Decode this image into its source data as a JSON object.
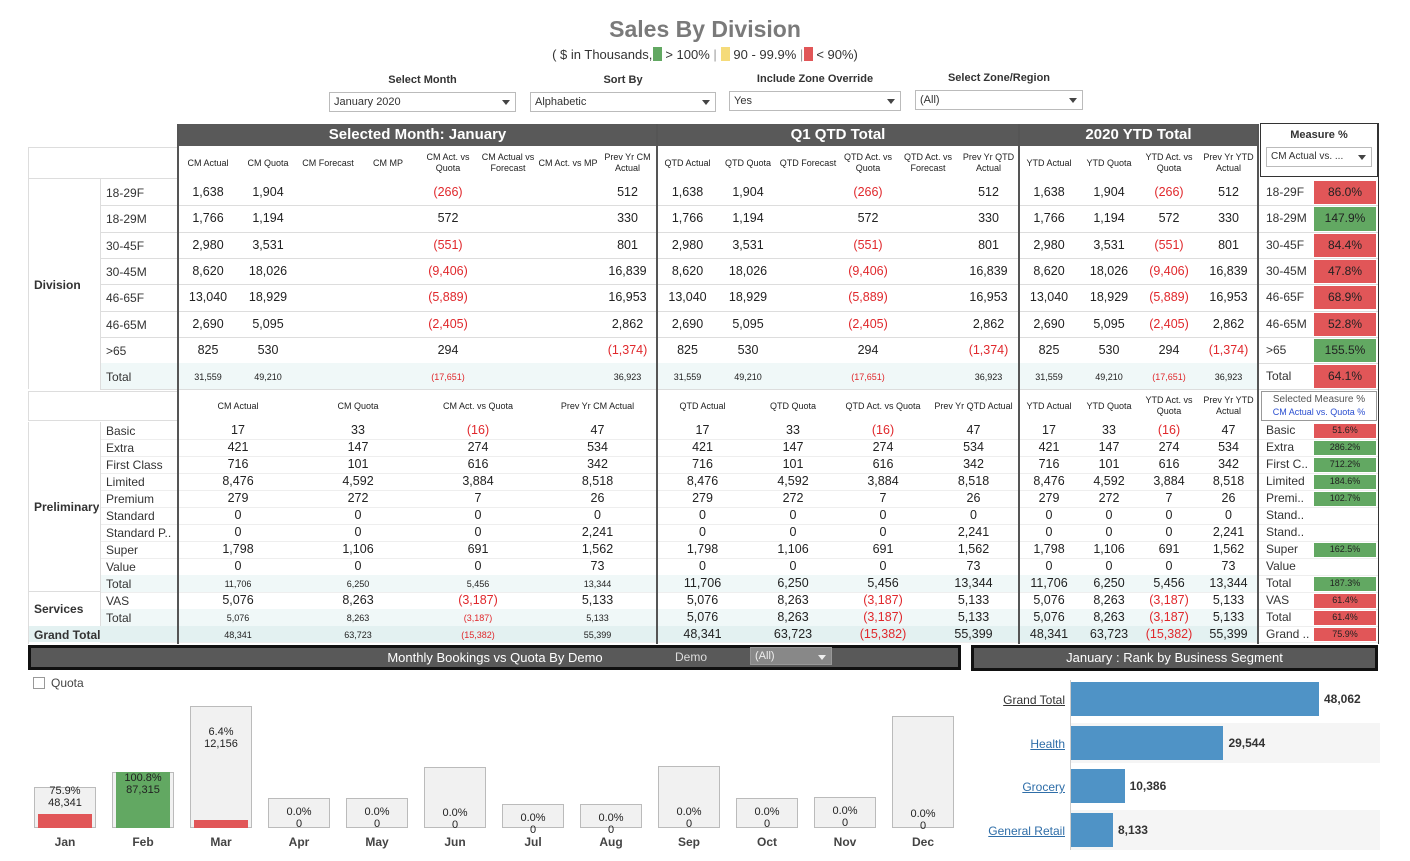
{
  "title": "Sales By Division",
  "subtitle": {
    "prefix": "( $ in Thousands,",
    "green": "> 100%",
    "yellow": "90 - 99.9%",
    "red": "< 90%)"
  },
  "colors": {
    "green": "#62a862",
    "yellow": "#f5db7a",
    "red": "#e15658",
    "header": "#595959",
    "bar_blue": "#4f93c6"
  },
  "filters": [
    {
      "label": "Select Month",
      "value": "January 2020"
    },
    {
      "label": "Sort By",
      "value": "Alphabetic"
    },
    {
      "label": "Include Zone Override",
      "value": "Yes"
    },
    {
      "label": "Select Zone/Region",
      "value": "(All)"
    }
  ],
  "sections": {
    "month": "Selected Month: January",
    "qtd": "Q1 QTD Total",
    "ytd": "2020 YTD Total"
  },
  "measure": {
    "title": "Measure %",
    "value": "CM Actual vs. ...",
    "selected_title": "Selected Measure %",
    "selected_value": "CM Actual vs. Quota %"
  },
  "top_cols": {
    "month": [
      "CM Actual",
      "CM Quota",
      "CM Forecast",
      "CM MP",
      "CM Act. vs Quota",
      "CM Actual vs Forecast",
      "CM Act. vs MP",
      "Prev Yr CM Actual"
    ],
    "qtd": [
      "QTD Actual",
      "QTD Quota",
      "QTD Forecast",
      "QTD Act. vs Quota",
      "QTD Act. vs Forecast",
      "Prev Yr QTD Actual"
    ],
    "ytd": [
      "YTD Actual",
      "YTD Quota",
      "YTD Act. vs Quota",
      "Prev Yr YTD Actual"
    ]
  },
  "division": {
    "label": "Division",
    "rows": [
      {
        "name": "18-29F",
        "m": [
          "1,638",
          "1,904",
          "",
          "",
          "(266)",
          "",
          "",
          "512"
        ],
        "q": [
          "1,638",
          "1,904",
          "",
          "(266)",
          "",
          "512"
        ],
        "y": [
          "1,638",
          "1,904",
          "(266)",
          "512"
        ],
        "pct": "86.0%",
        "c": "red"
      },
      {
        "name": "18-29M",
        "m": [
          "1,766",
          "1,194",
          "",
          "",
          "572",
          "",
          "",
          "330"
        ],
        "q": [
          "1,766",
          "1,194",
          "",
          "572",
          "",
          "330"
        ],
        "y": [
          "1,766",
          "1,194",
          "572",
          "330"
        ],
        "pct": "147.9%",
        "c": "green"
      },
      {
        "name": "30-45F",
        "m": [
          "2,980",
          "3,531",
          "",
          "",
          "(551)",
          "",
          "",
          "801"
        ],
        "q": [
          "2,980",
          "3,531",
          "",
          "(551)",
          "",
          "801"
        ],
        "y": [
          "2,980",
          "3,531",
          "(551)",
          "801"
        ],
        "pct": "84.4%",
        "c": "red"
      },
      {
        "name": "30-45M",
        "m": [
          "8,620",
          "18,026",
          "",
          "",
          "(9,406)",
          "",
          "",
          "16,839"
        ],
        "q": [
          "8,620",
          "18,026",
          "",
          "(9,406)",
          "",
          "16,839"
        ],
        "y": [
          "8,620",
          "18,026",
          "(9,406)",
          "16,839"
        ],
        "pct": "47.8%",
        "c": "red"
      },
      {
        "name": "46-65F",
        "m": [
          "13,040",
          "18,929",
          "",
          "",
          "(5,889)",
          "",
          "",
          "16,953"
        ],
        "q": [
          "13,040",
          "18,929",
          "",
          "(5,889)",
          "",
          "16,953"
        ],
        "y": [
          "13,040",
          "18,929",
          "(5,889)",
          "16,953"
        ],
        "pct": "68.9%",
        "c": "red"
      },
      {
        "name": "46-65M",
        "m": [
          "2,690",
          "5,095",
          "",
          "",
          "(2,405)",
          "",
          "",
          "2,862"
        ],
        "q": [
          "2,690",
          "5,095",
          "",
          "(2,405)",
          "",
          "2,862"
        ],
        "y": [
          "2,690",
          "5,095",
          "(2,405)",
          "2,862"
        ],
        "pct": "52.8%",
        "c": "red"
      },
      {
        "name": ">65",
        "m": [
          "825",
          "530",
          "",
          "",
          "294",
          "",
          "",
          "(1,374)"
        ],
        "q": [
          "825",
          "530",
          "",
          "294",
          "",
          "(1,374)"
        ],
        "y": [
          "825",
          "530",
          "294",
          "(1,374)"
        ],
        "pct": "155.5%",
        "c": "green"
      },
      {
        "name": "Total",
        "m": [
          "31,559",
          "49,210",
          "",
          "",
          "(17,651)",
          "",
          "",
          "36,923"
        ],
        "q": [
          "31,559",
          "49,210",
          "",
          "(17,651)",
          "",
          "36,923"
        ],
        "y": [
          "31,559",
          "49,210",
          "(17,651)",
          "36,923"
        ],
        "pct": "64.1%",
        "c": "red"
      }
    ]
  },
  "bottom_cols": {
    "month": [
      "CM Actual",
      "CM Quota",
      "CM Act. vs Quota",
      "Prev Yr CM Actual"
    ],
    "qtd": [
      "QTD Actual",
      "QTD Quota",
      "QTD Act. vs Quota",
      "Prev Yr QTD Actual"
    ],
    "ytd": [
      "YTD Actual",
      "YTD Quota",
      "YTD Act. vs Quota",
      "Prev Yr YTD Actual"
    ]
  },
  "prelim": {
    "label": "Preliminary",
    "rows": [
      {
        "name": "Basic",
        "v": [
          "17",
          "33",
          "(16)",
          "47"
        ],
        "short": "Basic",
        "pct": "51.6%",
        "c": "red"
      },
      {
        "name": "Extra",
        "v": [
          "421",
          "147",
          "274",
          "534"
        ],
        "short": "Extra",
        "pct": "286.2%",
        "c": "green"
      },
      {
        "name": "First Class",
        "v": [
          "716",
          "101",
          "616",
          "342"
        ],
        "short": "First C..",
        "pct": "712.2%",
        "c": "green"
      },
      {
        "name": "Limited",
        "v": [
          "8,476",
          "4,592",
          "3,884",
          "8,518"
        ],
        "short": "Limited",
        "pct": "184.6%",
        "c": "green"
      },
      {
        "name": "Premium",
        "v": [
          "279",
          "272",
          "7",
          "26"
        ],
        "short": "Premi..",
        "pct": "102.7%",
        "c": "green"
      },
      {
        "name": "Standard",
        "v": [
          "0",
          "0",
          "0",
          "0"
        ],
        "short": "Stand..",
        "pct": "",
        "c": "none"
      },
      {
        "name": "Standard P..",
        "v": [
          "0",
          "0",
          "0",
          "2,241"
        ],
        "short": "Stand..",
        "pct": "",
        "c": "none"
      },
      {
        "name": "Super",
        "v": [
          "1,798",
          "1,106",
          "691",
          "1,562"
        ],
        "short": "Super",
        "pct": "162.5%",
        "c": "green"
      },
      {
        "name": "Value",
        "v": [
          "0",
          "0",
          "0",
          "73"
        ],
        "short": "Value",
        "pct": "",
        "c": "none"
      },
      {
        "name": "Total",
        "v": [
          "11,706",
          "6,250",
          "5,456",
          "13,344"
        ],
        "short": "Total",
        "pct": "187.3%",
        "c": "green"
      }
    ]
  },
  "services": {
    "label": "Services",
    "rows": [
      {
        "name": "VAS",
        "v": [
          "5,076",
          "8,263",
          "(3,187)",
          "5,133"
        ],
        "short": "VAS",
        "pct": "61.4%",
        "c": "red"
      },
      {
        "name": "Total",
        "v": [
          "5,076",
          "8,263",
          "(3,187)",
          "5,133"
        ],
        "short": "Total",
        "pct": "61.4%",
        "c": "red"
      }
    ]
  },
  "grand": {
    "name": "Grand Total",
    "v": [
      "48,341",
      "63,723",
      "(15,382)",
      "55,399"
    ],
    "short": "Grand ..",
    "pct": "75.9%",
    "c": "red"
  },
  "monthly": {
    "title": "Monthly Bookings vs Quota By Demo",
    "demo_label": "Demo",
    "demo_value": "(All)",
    "quota_label": "Quota"
  },
  "chart_data": [
    {
      "type": "bar",
      "title": "Monthly Bookings vs Quota By Demo",
      "categories": [
        "Jan",
        "Feb",
        "Mar",
        "Apr",
        "May",
        "Jun",
        "Jul",
        "Aug",
        "Sep",
        "Oct",
        "Nov",
        "Dec"
      ],
      "quota": [
        63723,
        86600,
        190000,
        46500,
        46500,
        95000,
        38000,
        38000,
        96000,
        46500,
        49000,
        175000
      ],
      "actual": [
        48341,
        87315,
        12156,
        0,
        0,
        0,
        0,
        0,
        0,
        0,
        0,
        0
      ],
      "pct_labels": [
        "75.9%",
        "100.8%",
        "6.4%",
        "0.0%",
        "0.0%",
        "0.0%",
        "0.0%",
        "0.0%",
        "0.0%",
        "0.0%",
        "0.0%",
        "0.0%"
      ],
      "value_labels": [
        "48,341",
        "87,315",
        "12,156",
        "0",
        "0",
        "0",
        "0",
        "0",
        "0",
        "0",
        "0",
        "0"
      ],
      "bar_colors": [
        "red",
        "green",
        "red",
        "none",
        "none",
        "none",
        "none",
        "none",
        "none",
        "none",
        "none",
        "none"
      ]
    },
    {
      "type": "bar",
      "orientation": "horizontal",
      "title": "January : Rank by Business Segment",
      "categories": [
        "Grand Total",
        "Health",
        "Grocery",
        "General Retail"
      ],
      "values": [
        48062,
        29544,
        10386,
        8133
      ],
      "value_labels": [
        "48,062",
        "29,544",
        "10,386",
        "8,133"
      ]
    }
  ]
}
